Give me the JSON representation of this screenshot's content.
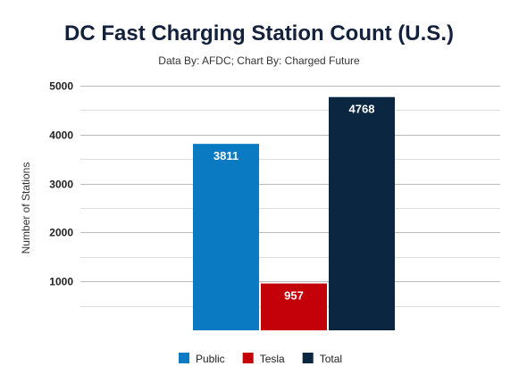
{
  "chart_data": {
    "type": "bar",
    "title": "DC Fast Charging Station Count (U.S.)",
    "subtitle": "Data By: AFDC; Chart By: Charged Future",
    "xlabel": "",
    "ylabel": "Number of Stations",
    "ylim": [
      0,
      5000
    ],
    "yticks": [
      1000,
      2000,
      3000,
      4000,
      5000
    ],
    "grid": true,
    "legend_position": "bottom",
    "series": [
      {
        "name": "Public",
        "value": 3811,
        "color": "#0a7bc2"
      },
      {
        "name": "Tesla",
        "value": 957,
        "color": "#c40008"
      },
      {
        "name": "Total",
        "value": 4768,
        "color": "#0b2640"
      }
    ]
  }
}
